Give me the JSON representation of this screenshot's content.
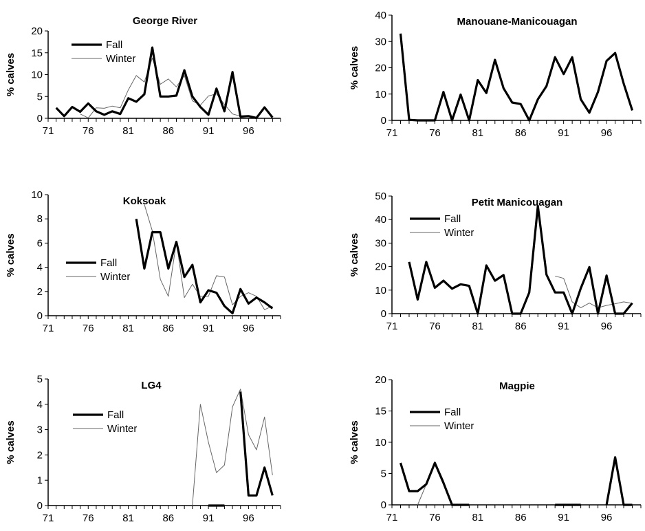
{
  "chart_data": [
    {
      "type": "line",
      "title": "George River",
      "xlabel": "",
      "ylabel": "% calves",
      "xlim": [
        71,
        100
      ],
      "ylim": [
        0,
        20
      ],
      "xticks": [
        "71",
        "76",
        "81",
        "86",
        "91",
        "96"
      ],
      "yticks": [
        "0",
        "5",
        "10",
        "15",
        "20"
      ],
      "legend": [
        "Fall",
        "Winter"
      ],
      "series": [
        {
          "name": "Fall",
          "color": "#000000",
          "points": [
            [
              72,
              2.4
            ],
            [
              73,
              0.5
            ],
            [
              74,
              2.6
            ],
            [
              75,
              1.5
            ],
            [
              76,
              3.4
            ],
            [
              77,
              1.6
            ],
            [
              78,
              0.8
            ],
            [
              79,
              1.6
            ],
            [
              80,
              1.0
            ],
            [
              81,
              4.6
            ],
            [
              82,
              3.8
            ],
            [
              83,
              5.5
            ],
            [
              84,
              16.2
            ],
            [
              85,
              5.0
            ],
            [
              86,
              5.0
            ],
            [
              87,
              5.2
            ],
            [
              88,
              11.0
            ],
            [
              89,
              5.0
            ],
            [
              90,
              2.6
            ],
            [
              91,
              0.8
            ],
            [
              92,
              6.8
            ],
            [
              93,
              1.6
            ],
            [
              94,
              10.6
            ],
            [
              95,
              0.4
            ],
            [
              96,
              0.5
            ],
            [
              97,
              0.1
            ],
            [
              98,
              2.5
            ],
            [
              99,
              0.2
            ]
          ]
        },
        {
          "name": "Winter",
          "color": "#555555",
          "points": [
            [
              75,
              1.0
            ],
            [
              76,
              0.1
            ],
            [
              77,
              2.4
            ],
            [
              78,
              2.3
            ],
            [
              79,
              2.8
            ],
            [
              80,
              2.4
            ],
            [
              81,
              6.5
            ],
            [
              82,
              9.8
            ],
            [
              83,
              8.3
            ],
            [
              84,
              13.8
            ],
            [
              85,
              7.8
            ],
            [
              86,
              9.0
            ],
            [
              87,
              7.2
            ],
            [
              88,
              9.8
            ],
            [
              89,
              4.0
            ],
            [
              90,
              3.0
            ],
            [
              91,
              5.1
            ],
            [
              92,
              5.6
            ],
            [
              93,
              3.2
            ],
            [
              94,
              1.0
            ],
            [
              95,
              0.5
            ]
          ]
        }
      ]
    },
    {
      "type": "line",
      "title": "Manouane-Manicouagan",
      "xlabel": "",
      "ylabel": "% calves",
      "xlim": [
        71,
        100
      ],
      "ylim": [
        0,
        40
      ],
      "xticks": [
        "71",
        "76",
        "81",
        "86",
        "91",
        "96"
      ],
      "yticks": [
        "0",
        "10",
        "20",
        "30",
        "40"
      ],
      "legend": [],
      "series": [
        {
          "name": "",
          "color": "#000000",
          "points": [
            [
              72,
              33
            ],
            [
              73,
              0.2
            ],
            [
              74,
              0
            ],
            [
              75,
              0
            ],
            [
              76,
              0
            ],
            [
              77,
              10.8
            ],
            [
              78,
              0
            ],
            [
              79,
              9.8
            ],
            [
              80,
              0
            ],
            [
              81,
              15.3
            ],
            [
              82,
              10.4
            ],
            [
              83,
              23.0
            ],
            [
              84,
              12.2
            ],
            [
              85,
              6.8
            ],
            [
              86,
              6.2
            ],
            [
              87,
              0
            ],
            [
              88,
              8.0
            ],
            [
              89,
              13.0
            ],
            [
              90,
              24.0
            ],
            [
              91,
              17.6
            ],
            [
              92,
              24.0
            ],
            [
              93,
              8.0
            ],
            [
              94,
              2.9
            ],
            [
              95,
              10.8
            ],
            [
              96,
              22.6
            ],
            [
              97,
              25.6
            ],
            [
              98,
              14.0
            ],
            [
              99,
              3.8
            ]
          ]
        }
      ]
    },
    {
      "type": "line",
      "title": "Koksoak",
      "xlabel": "",
      "ylabel": "% calves",
      "xlim": [
        71,
        100
      ],
      "ylim": [
        0,
        10
      ],
      "xticks": [
        "71",
        "76",
        "81",
        "86",
        "91",
        "96"
      ],
      "yticks": [
        "0",
        "2",
        "4",
        "6",
        "8",
        "10"
      ],
      "legend": [
        "Fall",
        "Winter"
      ],
      "series": [
        {
          "name": "Fall",
          "color": "#000000",
          "points": [
            [
              82,
              8.0
            ],
            [
              83,
              3.9
            ],
            [
              84,
              6.9
            ],
            [
              85,
              6.9
            ],
            [
              86,
              3.9
            ],
            [
              87,
              6.1
            ],
            [
              88,
              3.2
            ],
            [
              89,
              4.2
            ],
            [
              90,
              1.1
            ],
            [
              91,
              2.1
            ],
            [
              92,
              1.9
            ],
            [
              93,
              0.8
            ],
            [
              94,
              0.2
            ],
            [
              95,
              2.2
            ],
            [
              96,
              1.0
            ],
            [
              97,
              1.5
            ],
            [
              98,
              1.1
            ],
            [
              99,
              0.6
            ]
          ]
        },
        {
          "name": "Winter",
          "color": "#555555",
          "points": [
            [
              83,
              9.2
            ],
            [
              84,
              7.0
            ],
            [
              85,
              3.0
            ],
            [
              86,
              1.6
            ],
            [
              87,
              6.1
            ],
            [
              88,
              1.5
            ],
            [
              89,
              2.6
            ],
            [
              90,
              1.6
            ],
            [
              91,
              1.6
            ],
            [
              92,
              3.3
            ],
            [
              93,
              3.2
            ],
            [
              94,
              0.9
            ],
            [
              95,
              1.6
            ],
            [
              96,
              1.9
            ],
            [
              97,
              1.6
            ],
            [
              98,
              0.5
            ],
            [
              99,
              0.8
            ]
          ]
        }
      ]
    },
    {
      "type": "line",
      "title": "Petit Manicouagan",
      "xlabel": "",
      "ylabel": "% calves",
      "xlim": [
        71,
        100
      ],
      "ylim": [
        0,
        50
      ],
      "xticks": [
        "71",
        "76",
        "81",
        "86",
        "91",
        "96"
      ],
      "yticks": [
        "0",
        "10",
        "20",
        "30",
        "40",
        "50"
      ],
      "legend": [
        "Fall",
        "Winter"
      ],
      "series": [
        {
          "name": "Fall",
          "color": "#000000",
          "points": [
            [
              73,
              22.0
            ],
            [
              74,
              6.0
            ],
            [
              75,
              22.0
            ],
            [
              76,
              11.0
            ],
            [
              77,
              14.0
            ],
            [
              78,
              10.6
            ],
            [
              79,
              12.5
            ],
            [
              80,
              11.8
            ],
            [
              81,
              0
            ],
            [
              82,
              20.5
            ],
            [
              83,
              14.0
            ],
            [
              84,
              16.4
            ],
            [
              85,
              0
            ],
            [
              86,
              0
            ],
            [
              87,
              9.0
            ],
            [
              88,
              45.8
            ],
            [
              89,
              16.6
            ],
            [
              90,
              9.0
            ],
            [
              91,
              9.0
            ],
            [
              92,
              0
            ],
            [
              93,
              10.8
            ],
            [
              94,
              19.8
            ],
            [
              95,
              0
            ],
            [
              96,
              16.2
            ],
            [
              97,
              0
            ],
            [
              98,
              0
            ],
            [
              99,
              4.5
            ]
          ]
        },
        {
          "name": "Winter",
          "color": "#555555",
          "points": [
            [
              90,
              16.0
            ],
            [
              91,
              15.0
            ],
            [
              92,
              5.0
            ],
            [
              93,
              2.5
            ],
            [
              94,
              4.5
            ],
            [
              95,
              2.5
            ],
            [
              96,
              3.5
            ],
            [
              97,
              4.2
            ],
            [
              98,
              5.0
            ],
            [
              99,
              4.4
            ]
          ]
        }
      ]
    },
    {
      "type": "line",
      "title": "LG4",
      "xlabel": "",
      "ylabel": "% calves",
      "xlim": [
        71,
        100
      ],
      "ylim": [
        0,
        5
      ],
      "xticks": [
        "71",
        "76",
        "81",
        "86",
        "91",
        "96"
      ],
      "yticks": [
        "0",
        "1",
        "2",
        "3",
        "4",
        "5"
      ],
      "legend": [
        "Fall",
        "Winter"
      ],
      "series": [
        {
          "name": "Fall",
          "color": "#000000",
          "points": [
            [
              91,
              0
            ],
            [
              92,
              0
            ],
            [
              93,
              0
            ],
            [
              95,
              4.5
            ],
            [
              96,
              0.4
            ],
            [
              97,
              0.4
            ],
            [
              98,
              1.5
            ],
            [
              99,
              0.4
            ]
          ]
        },
        {
          "name": "Winter",
          "color": "#555555",
          "points": [
            [
              89,
              0
            ],
            [
              90,
              4.0
            ],
            [
              91,
              2.5
            ],
            [
              92,
              1.3
            ],
            [
              93,
              1.6
            ],
            [
              94,
              3.9
            ],
            [
              95,
              4.6
            ],
            [
              96,
              2.8
            ],
            [
              97,
              2.2
            ],
            [
              98,
              3.5
            ],
            [
              99,
              1.2
            ]
          ]
        }
      ]
    },
    {
      "type": "line",
      "title": "Magpie",
      "xlabel": "",
      "ylabel": "% calves",
      "xlim": [
        71,
        100
      ],
      "ylim": [
        0,
        20
      ],
      "xticks": [
        "71",
        "76",
        "81",
        "86",
        "91",
        "96"
      ],
      "yticks": [
        "0",
        "5",
        "10",
        "15",
        "20"
      ],
      "legend": [
        "Fall",
        "Winter"
      ],
      "series": [
        {
          "name": "Fall",
          "color": "#000000",
          "points": [
            [
              72,
              6.7
            ],
            [
              73,
              2.2
            ],
            [
              74,
              2.2
            ],
            [
              75,
              3.3
            ],
            [
              76,
              6.7
            ],
            [
              77,
              3.5
            ],
            [
              78,
              0
            ],
            [
              79,
              0
            ],
            [
              80,
              0
            ],
            [
              90,
              0
            ],
            [
              91,
              0
            ],
            [
              92,
              0
            ],
            [
              93,
              0
            ],
            [
              96,
              0
            ],
            [
              97,
              7.6
            ],
            [
              98,
              0
            ],
            [
              99,
              0
            ]
          ]
        },
        {
          "name": "Winter",
          "color": "#555555",
          "points": [
            [
              74,
              0
            ],
            [
              75,
              3.3
            ],
            [
              76,
              6.9
            ],
            [
              77,
              3.9
            ],
            [
              78,
              0
            ]
          ]
        }
      ]
    }
  ]
}
